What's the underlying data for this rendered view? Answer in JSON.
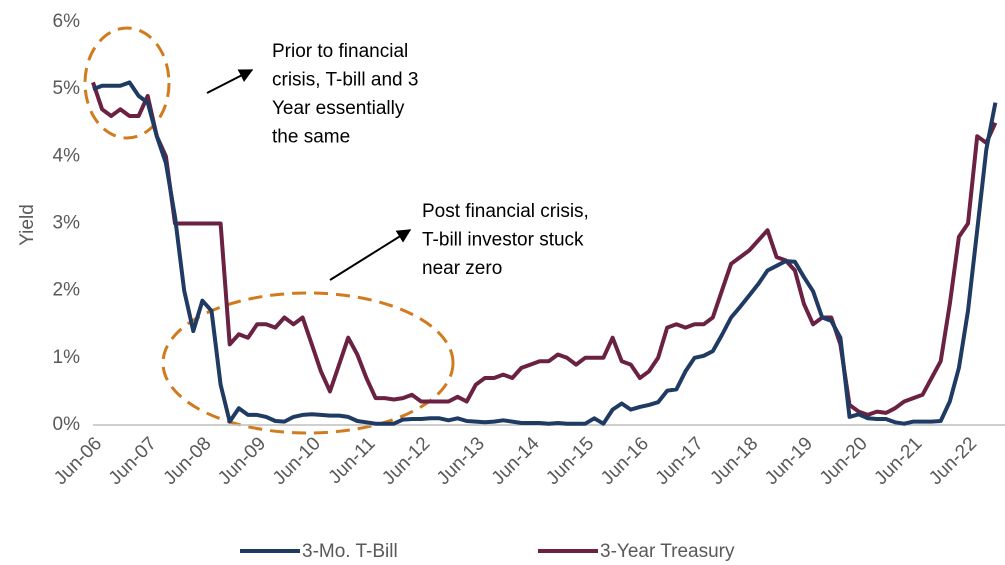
{
  "chart_data": {
    "type": "line",
    "ylabel": "Yield",
    "categories": [
      "Jun-06",
      null,
      null,
      null,
      null,
      null,
      "Jun-07",
      null,
      null,
      null,
      null,
      null,
      "Jun-08",
      null,
      null,
      null,
      null,
      null,
      "Jun-09",
      null,
      null,
      null,
      null,
      null,
      "Jun-10",
      null,
      null,
      null,
      null,
      null,
      "Jun-11",
      null,
      null,
      null,
      null,
      null,
      "Jun-12",
      null,
      null,
      null,
      null,
      null,
      "Jun-13",
      null,
      null,
      null,
      null,
      null,
      "Jun-14",
      null,
      null,
      null,
      null,
      null,
      "Jun-15",
      null,
      null,
      null,
      null,
      null,
      "Jun-16",
      null,
      null,
      null,
      null,
      null,
      "Jun-17",
      null,
      null,
      null,
      null,
      null,
      "Jun-18",
      null,
      null,
      null,
      null,
      null,
      "Jun-19",
      null,
      null,
      null,
      null,
      null,
      "Jun-20",
      null,
      null,
      null,
      null,
      null,
      "Jun-21",
      null,
      null,
      null,
      null,
      null,
      "Jun-22",
      null,
      null,
      null
    ],
    "series": [
      {
        "name": "3-Mo. T-Bill",
        "color": "#1f3b63",
        "values": [
          5.0,
          5.05,
          5.05,
          5.05,
          5.1,
          4.9,
          4.8,
          4.3,
          3.9,
          3.1,
          2.0,
          1.4,
          1.85,
          1.7,
          0.6,
          0.05,
          0.25,
          0.15,
          0.15,
          0.12,
          0.06,
          0.05,
          0.12,
          0.15,
          0.16,
          0.15,
          0.14,
          0.14,
          0.12,
          0.06,
          0.04,
          0.02,
          0.02,
          0.02,
          0.08,
          0.09,
          0.09,
          0.1,
          0.1,
          0.07,
          0.1,
          0.06,
          0.05,
          0.04,
          0.05,
          0.07,
          0.05,
          0.03,
          0.03,
          0.03,
          0.02,
          0.03,
          0.02,
          0.02,
          0.02,
          0.1,
          0.02,
          0.23,
          0.32,
          0.23,
          0.27,
          0.3,
          0.34,
          0.51,
          0.53,
          0.8,
          1.0,
          1.03,
          1.1,
          1.34,
          1.6,
          1.76,
          1.93,
          2.1,
          2.3,
          2.37,
          2.44,
          2.43,
          2.2,
          1.99,
          1.6,
          1.55,
          1.3,
          0.12,
          0.16,
          0.1,
          0.09,
          0.09,
          0.04,
          0.02,
          0.05,
          0.05,
          0.05,
          0.06,
          0.35,
          0.85,
          1.7,
          2.9,
          4.1,
          4.8
        ]
      },
      {
        "name": "3-Year Treasury",
        "color": "#6b2142",
        "values": [
          5.1,
          4.7,
          4.6,
          4.7,
          4.6,
          4.6,
          4.9,
          4.3,
          4.0,
          3.0,
          3.0,
          3.0,
          3.0,
          3.0,
          3.0,
          1.2,
          1.35,
          1.3,
          1.5,
          1.5,
          1.45,
          1.6,
          1.5,
          1.6,
          1.2,
          0.8,
          0.5,
          0.9,
          1.3,
          1.05,
          0.7,
          0.4,
          0.4,
          0.38,
          0.4,
          0.45,
          0.35,
          0.35,
          0.35,
          0.35,
          0.42,
          0.35,
          0.6,
          0.7,
          0.7,
          0.75,
          0.7,
          0.85,
          0.9,
          0.95,
          0.95,
          1.05,
          1.0,
          0.9,
          1.0,
          1.0,
          1.0,
          1.3,
          0.95,
          0.9,
          0.7,
          0.8,
          1.0,
          1.45,
          1.5,
          1.45,
          1.5,
          1.5,
          1.6,
          2.0,
          2.4,
          2.5,
          2.6,
          2.75,
          2.9,
          2.5,
          2.45,
          2.3,
          1.8,
          1.5,
          1.6,
          1.6,
          1.2,
          0.3,
          0.2,
          0.15,
          0.2,
          0.18,
          0.25,
          0.35,
          0.4,
          0.45,
          0.7,
          0.95,
          1.8,
          2.8,
          3.0,
          4.3,
          4.2,
          4.5
        ]
      }
    ],
    "ylim": [
      0,
      6
    ],
    "yticks": [
      {
        "value": 0,
        "label": "0%"
      },
      {
        "value": 1,
        "label": "1%"
      },
      {
        "value": 2,
        "label": "2%"
      },
      {
        "value": 3,
        "label": "3%"
      },
      {
        "value": 4,
        "label": "4%"
      },
      {
        "value": 5,
        "label": "5%"
      },
      {
        "value": 6,
        "label": "6%"
      }
    ],
    "annotations": [
      {
        "lines": [
          "Prior to financial",
          "crisis, T-bill and 3",
          "Year essentially",
          "the same"
        ]
      },
      {
        "lines": [
          "Post financial crisis,",
          "T-bill investor stuck",
          "near zero"
        ]
      }
    ],
    "legend": "bottom"
  }
}
